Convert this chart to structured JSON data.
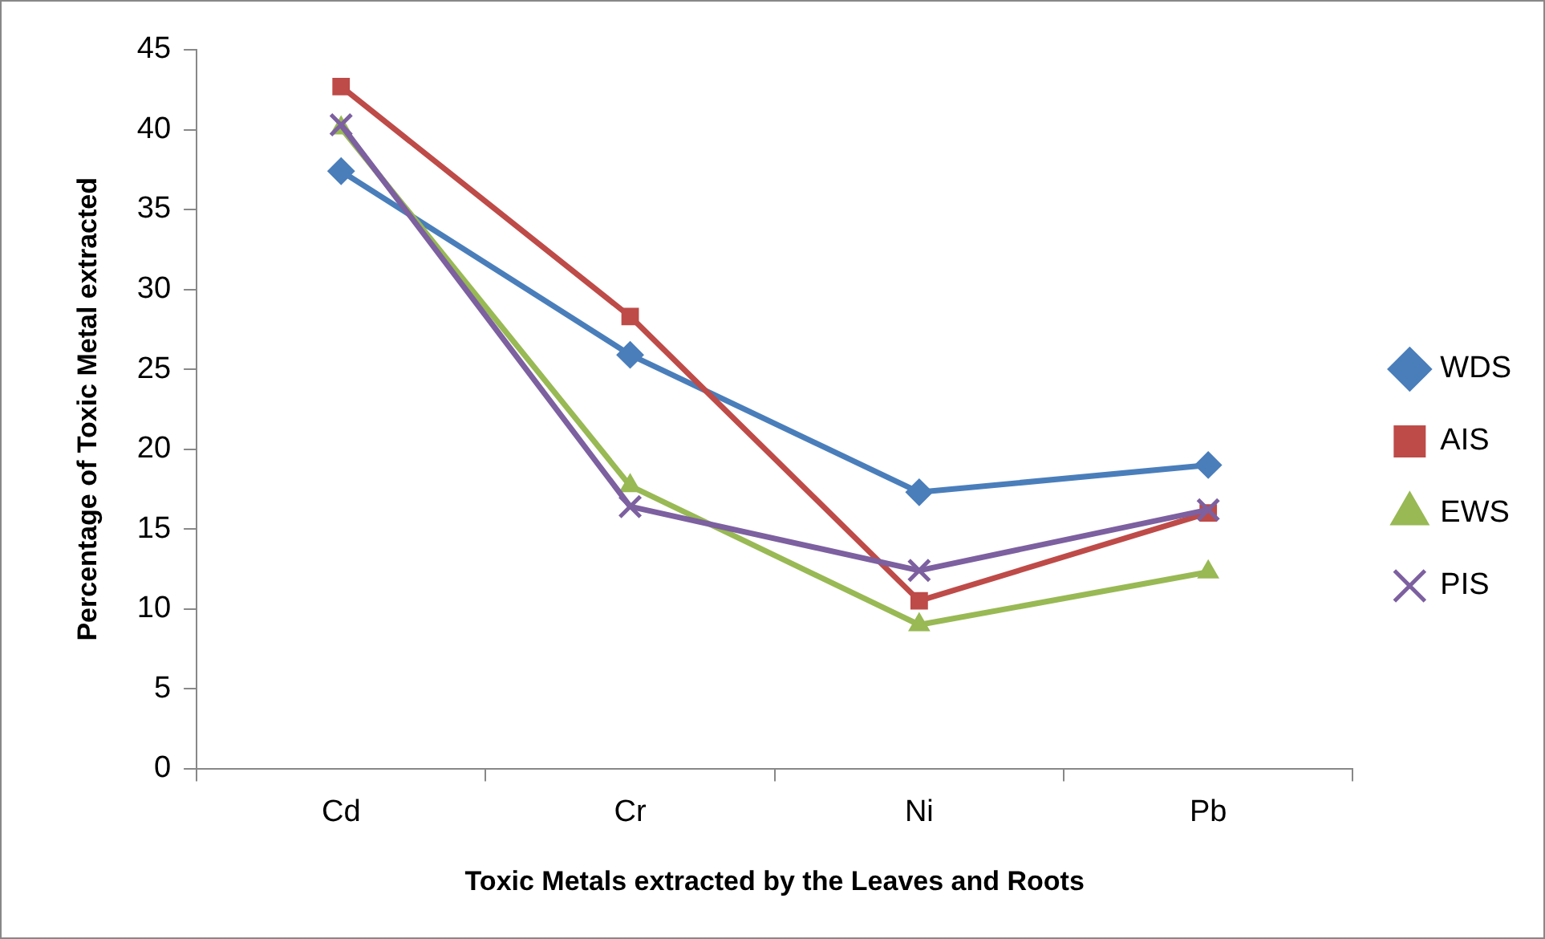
{
  "chart_data": {
    "type": "line",
    "xlabel": "Toxic Metals extracted by the Leaves and Roots",
    "ylabel": "Percentage of Toxic Metal extracted",
    "categories": [
      "Cd",
      "Cr",
      "Ni",
      "Pb"
    ],
    "series": [
      {
        "name": "WDS",
        "color": "#4a7ebb",
        "marker": "diamond",
        "values": [
          37.4,
          25.9,
          17.3,
          19.0
        ]
      },
      {
        "name": "AIS",
        "color": "#be4b48",
        "marker": "square",
        "values": [
          42.7,
          28.3,
          10.5,
          16.0
        ]
      },
      {
        "name": "EWS",
        "color": "#98b954",
        "marker": "triangle",
        "values": [
          40.1,
          17.7,
          9.0,
          12.3
        ]
      },
      {
        "name": "PIS",
        "color": "#7d60a0",
        "marker": "cross",
        "values": [
          40.3,
          16.4,
          12.4,
          16.2
        ]
      }
    ],
    "ylim": [
      0,
      45
    ],
    "yticks": [
      0,
      5,
      10,
      15,
      20,
      25,
      30,
      35,
      40,
      45
    ],
    "grid": false,
    "legend": "right",
    "line_style": "solid"
  }
}
